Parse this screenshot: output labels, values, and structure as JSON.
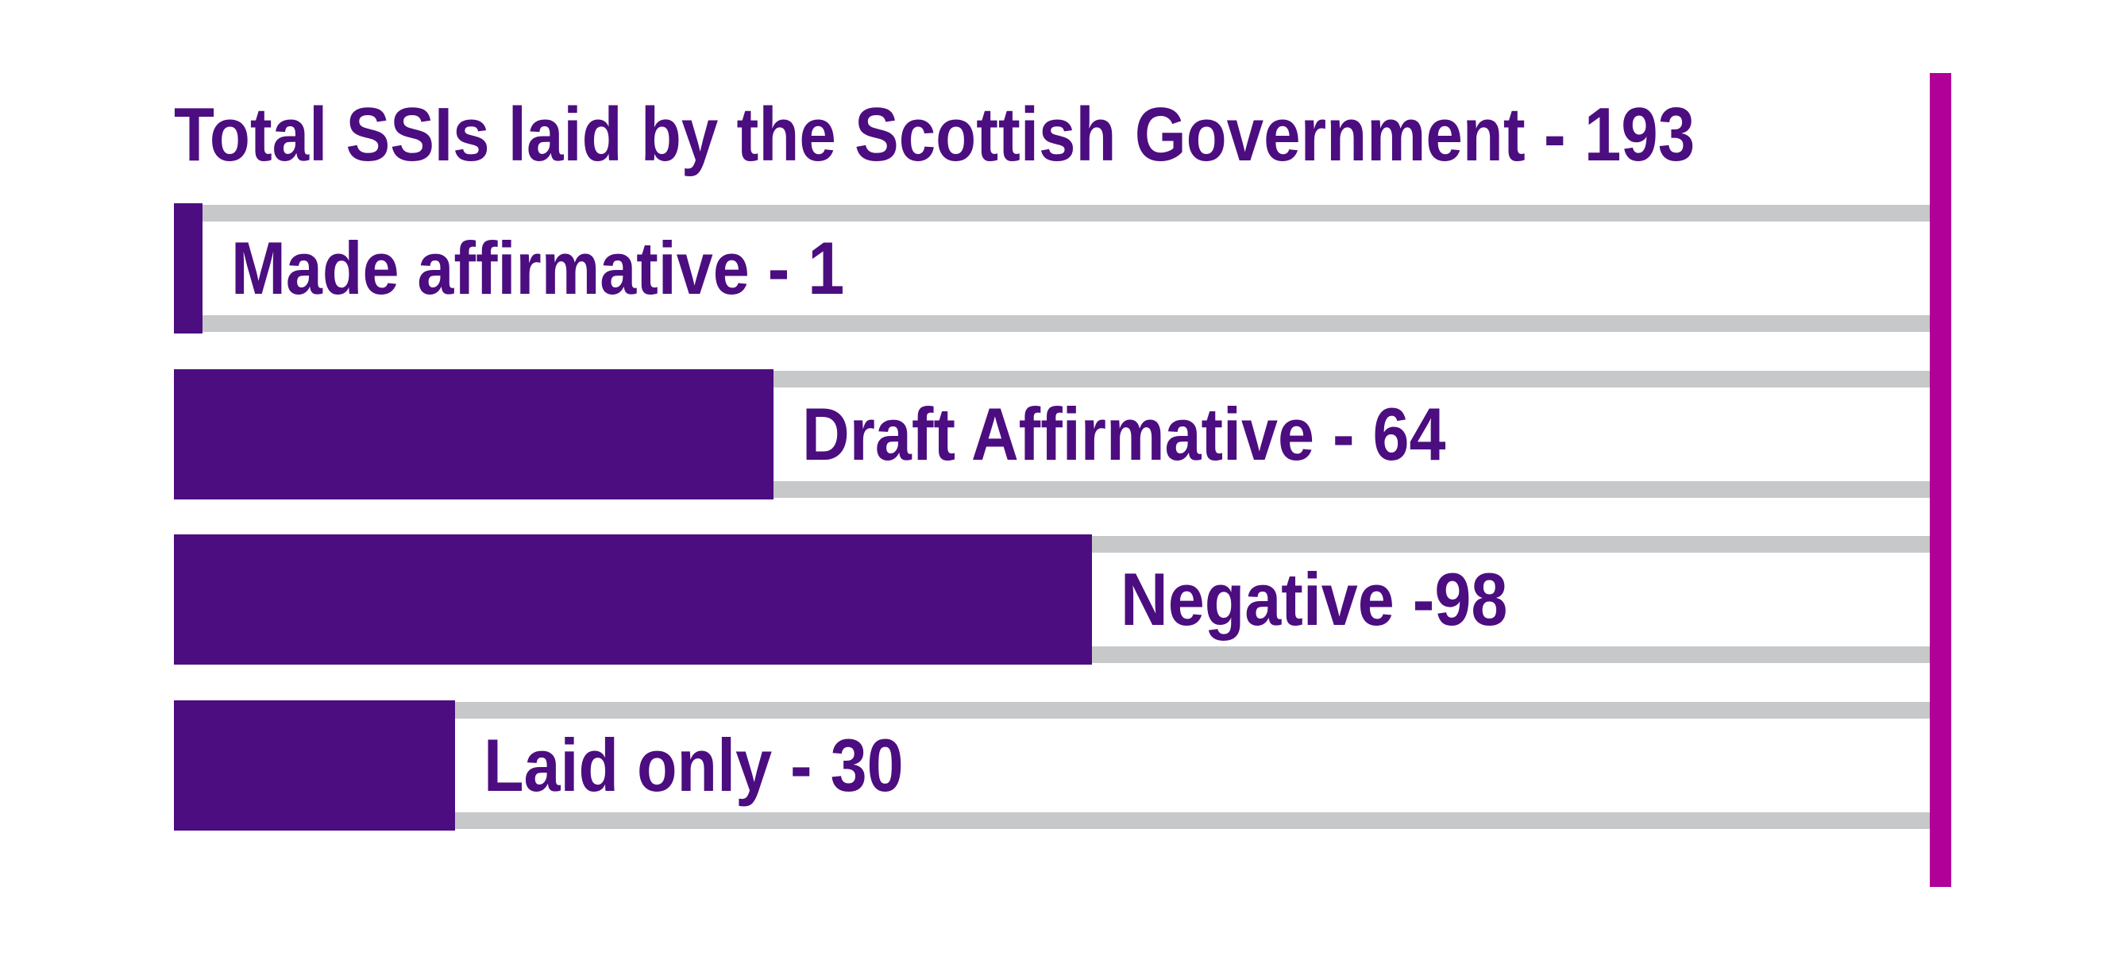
{
  "title": "Total SSIs laid by the Scottish Government - 193",
  "chart_data": {
    "type": "bar",
    "orientation": "horizontal",
    "title": "Total SSIs laid by the Scottish Government - 193",
    "total_label": "Total SSIs laid by the Scottish Government",
    "total_value": 193,
    "categories": [
      "Made affirmative",
      "Draft Affirmative",
      "Negative",
      "Laid only"
    ],
    "values": [
      1,
      64,
      98,
      30
    ],
    "bar_labels": [
      "Made affirmative - 1",
      "Draft Affirmative - 64",
      "Negative -98",
      "Laid only - 30"
    ],
    "xlim": [
      0,
      187
    ],
    "grid": false,
    "legend": false
  },
  "colors": {
    "bar": "#4C0D80",
    "text": "#4C0D80",
    "track_gray": "#C7C8CA",
    "accent_magenta": "#B00098",
    "background": "#FFFFFF"
  }
}
